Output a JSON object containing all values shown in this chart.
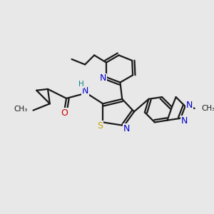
{
  "bg_color": "#e8e8e8",
  "bond_color": "#1a1a1a",
  "bond_lw": 1.6,
  "dbo": 0.014,
  "colors": {
    "S": "#c8a000",
    "N": "#0000cc",
    "O": "#cc0000",
    "H": "#008888",
    "C": "#1a1a1a"
  },
  "fs": 9.0,
  "fs_sm": 7.5
}
